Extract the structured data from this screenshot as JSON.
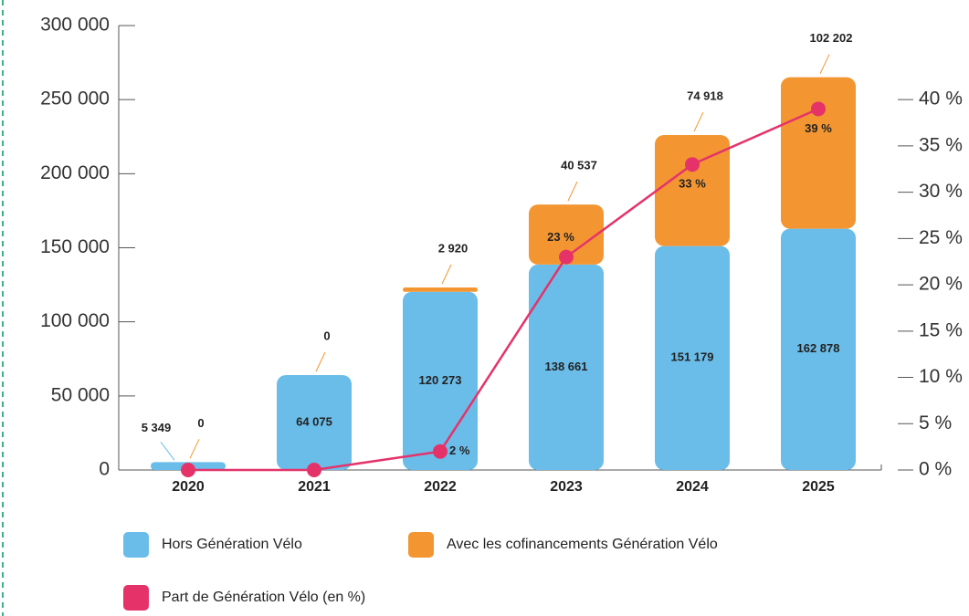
{
  "chart_data": {
    "type": "bar",
    "categories": [
      "2020",
      "2021",
      "2022",
      "2023",
      "2024",
      "2025"
    ],
    "series": [
      {
        "name": "Hors Génération Vélo",
        "color": "#6bbde9",
        "values": [
          5349,
          64075,
          120273,
          138661,
          151179,
          162878
        ],
        "value_labels": [
          "5 349",
          "64 075",
          "120 273",
          "138 661",
          "151 179",
          "162 878"
        ]
      },
      {
        "name": "Avec les cofinancements Génération Vélo",
        "color": "#f39632",
        "values": [
          0,
          0,
          2920,
          40537,
          74918,
          102202
        ],
        "value_labels": [
          "0",
          "0",
          "2 920",
          "40 537",
          "74 918",
          "102 202"
        ]
      },
      {
        "name": "Part de Génération Vélo (en %)",
        "color": "#e5336a",
        "type": "line",
        "axis": "y2",
        "values": [
          0,
          0,
          2,
          23,
          33,
          39
        ],
        "value_labels": [
          null,
          null,
          "2 %",
          "23 %",
          "33 %",
          "39 %"
        ]
      }
    ],
    "stacked": true,
    "ylim": [
      0,
      300000
    ],
    "yticks": [
      0,
      {
        "value": 50000,
        "label": "50 000"
      },
      {
        "value": 100000,
        "label": "100 000"
      },
      {
        "value": 150000,
        "label": "150 000"
      },
      {
        "value": 200000,
        "label": "200 000"
      },
      {
        "value": 250000,
        "label": "250 000"
      },
      {
        "value": 300000,
        "label": "300 000"
      }
    ],
    "y2lim": [
      0,
      48
    ],
    "y2ticks": [
      {
        "value": 0,
        "label": "0 %"
      },
      {
        "value": 5,
        "label": "5 %"
      },
      {
        "value": 10,
        "label": "10 %"
      },
      {
        "value": 15,
        "label": "15 %"
      },
      {
        "value": 20,
        "label": "20 %"
      },
      {
        "value": 25,
        "label": "25 %"
      },
      {
        "value": 30,
        "label": "30 %"
      },
      {
        "value": 35,
        "label": "35 %"
      },
      {
        "value": 40,
        "label": "40 %"
      }
    ],
    "legend": "bottom"
  }
}
